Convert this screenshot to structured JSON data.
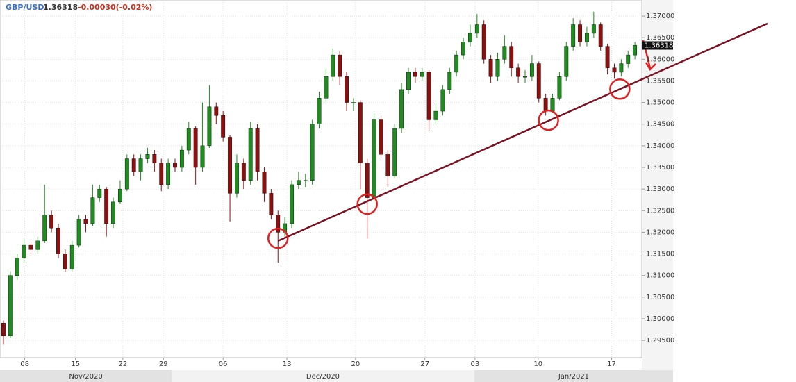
{
  "chart_data": {
    "type": "candlestick",
    "header": {
      "symbol": "GBP/USD",
      "price": "1.36318",
      "change": "-0.00030(-0.02%)"
    },
    "x": [
      0,
      1,
      2,
      3,
      4,
      5,
      6,
      7,
      8,
      9,
      10,
      11,
      12,
      13,
      14,
      15,
      16,
      17,
      18,
      19,
      20,
      21,
      22,
      23,
      24,
      25,
      26,
      27,
      28,
      29,
      30,
      31,
      32,
      33,
      34,
      35,
      36,
      37,
      38,
      39,
      40,
      41,
      42,
      43,
      44,
      45,
      46,
      47,
      48,
      49,
      50,
      51,
      52,
      53,
      54,
      55,
      56,
      57,
      58,
      59,
      60,
      61,
      62,
      63,
      64,
      65,
      66,
      67,
      68,
      69,
      70,
      71,
      72,
      73,
      74,
      75,
      76,
      77,
      78,
      79,
      80,
      81,
      82,
      83,
      84,
      85,
      86,
      87,
      88,
      89,
      90,
      91,
      92
    ],
    "open": [
      1.299,
      1.296,
      1.31,
      1.314,
      1.317,
      1.316,
      1.318,
      1.324,
      1.321,
      1.315,
      1.3115,
      1.317,
      1.323,
      1.322,
      1.328,
      1.33,
      1.322,
      1.327,
      1.33,
      1.337,
      1.334,
      1.337,
      1.338,
      1.336,
      1.331,
      1.336,
      1.335,
      1.339,
      1.344,
      1.335,
      1.34,
      1.349,
      1.347,
      1.342,
      1.329,
      1.336,
      1.332,
      1.344,
      1.334,
      1.329,
      1.324,
      1.32,
      1.322,
      1.331,
      1.332,
      1.332,
      1.345,
      1.351,
      1.356,
      1.361,
      1.356,
      1.35,
      1.35,
      1.336,
      1.328,
      1.346,
      1.338,
      1.333,
      1.344,
      1.353,
      1.357,
      1.356,
      1.357,
      1.346,
      1.348,
      1.353,
      1.357,
      1.361,
      1.364,
      1.366,
      1.368,
      1.36,
      1.356,
      1.36,
      1.363,
      1.358,
      1.356,
      1.356,
      1.359,
      1.351,
      1.348,
      1.351,
      1.356,
      1.363,
      1.368,
      1.364,
      1.366,
      1.368,
      1.363,
      1.358,
      1.357,
      1.359,
      1.361
    ],
    "high": [
      1.2996,
      1.311,
      1.315,
      1.3185,
      1.3178,
      1.319,
      1.331,
      1.325,
      1.322,
      1.316,
      1.318,
      1.324,
      1.324,
      1.331,
      1.331,
      1.3305,
      1.328,
      1.332,
      1.338,
      1.338,
      1.338,
      1.3395,
      1.339,
      1.337,
      1.337,
      1.337,
      1.34,
      1.3455,
      1.3445,
      1.35,
      1.354,
      1.35,
      1.348,
      1.3425,
      1.338,
      1.337,
      1.3455,
      1.345,
      1.335,
      1.33,
      1.325,
      1.3235,
      1.332,
      1.334,
      1.3335,
      1.346,
      1.3525,
      1.358,
      1.3625,
      1.362,
      1.357,
      1.351,
      1.3505,
      1.337,
      1.3475,
      1.347,
      1.339,
      1.345,
      1.3545,
      1.358,
      1.358,
      1.358,
      1.3575,
      1.3495,
      1.354,
      1.358,
      1.362,
      1.365,
      1.368,
      1.3705,
      1.369,
      1.361,
      1.3615,
      1.3655,
      1.364,
      1.359,
      1.3575,
      1.361,
      1.3595,
      1.352,
      1.352,
      1.357,
      1.364,
      1.3695,
      1.369,
      1.3675,
      1.371,
      1.3685,
      1.3635,
      1.359,
      1.36,
      1.362,
      1.364
    ],
    "low": [
      1.294,
      1.2955,
      1.309,
      1.313,
      1.315,
      1.315,
      1.3175,
      1.32,
      1.314,
      1.3108,
      1.311,
      1.3165,
      1.32,
      1.3215,
      1.327,
      1.319,
      1.321,
      1.3265,
      1.3295,
      1.333,
      1.332,
      1.336,
      1.334,
      1.3295,
      1.33,
      1.334,
      1.334,
      1.338,
      1.331,
      1.334,
      1.3395,
      1.345,
      1.341,
      1.3225,
      1.328,
      1.33,
      1.331,
      1.332,
      1.327,
      1.323,
      1.313,
      1.319,
      1.321,
      1.33,
      1.3305,
      1.331,
      1.344,
      1.35,
      1.355,
      1.354,
      1.348,
      1.348,
      1.33,
      1.3185,
      1.327,
      1.337,
      1.3305,
      1.3325,
      1.343,
      1.352,
      1.3545,
      1.355,
      1.3435,
      1.345,
      1.347,
      1.352,
      1.356,
      1.36,
      1.363,
      1.365,
      1.359,
      1.3545,
      1.355,
      1.359,
      1.356,
      1.3545,
      1.3545,
      1.355,
      1.35,
      1.347,
      1.3475,
      1.3505,
      1.355,
      1.362,
      1.363,
      1.363,
      1.365,
      1.362,
      1.3565,
      1.3555,
      1.356,
      1.358,
      1.36
    ],
    "close": [
      1.296,
      1.31,
      1.314,
      1.317,
      1.316,
      1.318,
      1.324,
      1.321,
      1.315,
      1.3115,
      1.317,
      1.323,
      1.322,
      1.328,
      1.33,
      1.322,
      1.327,
      1.33,
      1.337,
      1.334,
      1.337,
      1.338,
      1.336,
      1.331,
      1.336,
      1.335,
      1.339,
      1.344,
      1.335,
      1.34,
      1.349,
      1.347,
      1.342,
      1.329,
      1.336,
      1.332,
      1.344,
      1.334,
      1.329,
      1.324,
      1.32,
      1.322,
      1.331,
      1.332,
      1.332,
      1.345,
      1.351,
      1.356,
      1.361,
      1.356,
      1.35,
      1.35,
      1.336,
      1.328,
      1.346,
      1.338,
      1.333,
      1.344,
      1.353,
      1.357,
      1.356,
      1.357,
      1.346,
      1.348,
      1.353,
      1.357,
      1.361,
      1.364,
      1.366,
      1.368,
      1.36,
      1.356,
      1.36,
      1.363,
      1.358,
      1.356,
      1.356,
      1.359,
      1.351,
      1.348,
      1.351,
      1.356,
      1.363,
      1.368,
      1.364,
      1.366,
      1.368,
      1.363,
      1.358,
      1.357,
      1.359,
      1.361,
      1.3632
    ],
    "up_color": "#1e8c1e",
    "down_color": "#8b1010",
    "xlim": [
      -0.5,
      93
    ],
    "ylim": [
      1.291,
      1.3737
    ],
    "xticks": [
      {
        "value": 3.1,
        "label": "08"
      },
      {
        "value": 10.5,
        "label": "15"
      },
      {
        "value": 17.4,
        "label": "22"
      },
      {
        "value": 23.3,
        "label": "29"
      },
      {
        "value": 32,
        "label": "06"
      },
      {
        "value": 41.3,
        "label": "13"
      },
      {
        "value": 51.3,
        "label": "20"
      },
      {
        "value": 61.4,
        "label": "27"
      },
      {
        "value": 68.7,
        "label": "03"
      },
      {
        "value": 77.9,
        "label": "10"
      },
      {
        "value": 88.6,
        "label": "17"
      }
    ],
    "yticks": [
      {
        "value": 1.295,
        "label": "1.29500"
      },
      {
        "value": 1.3,
        "label": "1.30000"
      },
      {
        "value": 1.305,
        "label": "1.30500"
      },
      {
        "value": 1.31,
        "label": "1.31000"
      },
      {
        "value": 1.315,
        "label": "1.31500"
      },
      {
        "value": 1.32,
        "label": "1.32000"
      },
      {
        "value": 1.325,
        "label": "1.32500"
      },
      {
        "value": 1.33,
        "label": "1.33000"
      },
      {
        "value": 1.335,
        "label": "1.33500"
      },
      {
        "value": 1.34,
        "label": "1.34000"
      },
      {
        "value": 1.345,
        "label": "1.34500"
      },
      {
        "value": 1.35,
        "label": "1.35000"
      },
      {
        "value": 1.355,
        "label": "1.35500"
      },
      {
        "value": 1.36,
        "label": "1.36000"
      },
      {
        "value": 1.365,
        "label": "1.36500"
      },
      {
        "value": 1.37,
        "label": "1.37000"
      }
    ],
    "periods": [
      {
        "label": "Nov/2020",
        "start": -0.5,
        "end": 24.5
      },
      {
        "label": "Dec/2020",
        "start": 24.5,
        "end": 68.6
      },
      {
        "label": "Jan/2021",
        "start": 68.6,
        "end": 93
      }
    ],
    "last": {
      "value": 1.36318,
      "label": "1.36318"
    },
    "grid": true,
    "trendline": {
      "x": [
        40,
        89.8
      ],
      "y": [
        1.318,
        1.3531
      ],
      "color": "#7a1020"
    },
    "circles": {
      "x": [
        40,
        53,
        79.4,
        89.8
      ],
      "y": [
        1.3186,
        1.3265,
        1.3459,
        1.3531
      ],
      "color": "#e02020"
    }
  }
}
